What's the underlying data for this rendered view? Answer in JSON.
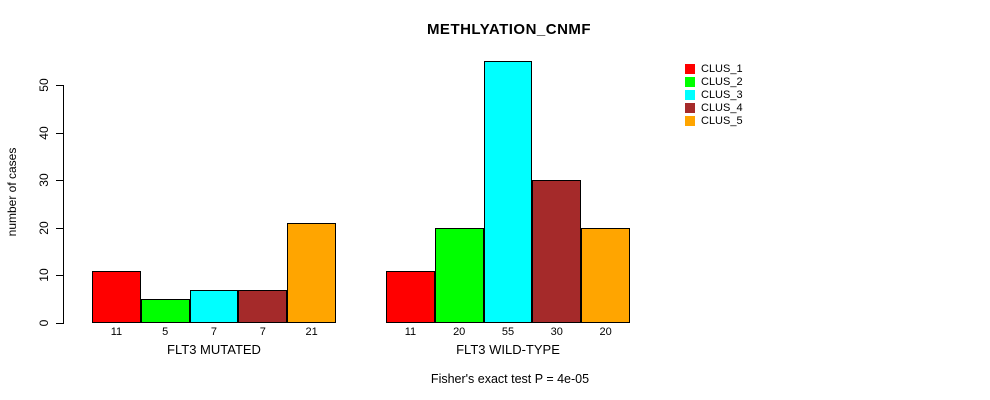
{
  "chart_data": {
    "type": "bar",
    "title": "METHLYATION_CNMF",
    "ylabel": "number of cases",
    "yticks": [
      0,
      10,
      20,
      30,
      40,
      50
    ],
    "ylim": [
      0,
      55
    ],
    "grid": false,
    "categories": [
      "FLT3 MUTATED",
      "FLT3 WILD-TYPE"
    ],
    "series": [
      {
        "name": "CLUS_1",
        "color": "#FF0000",
        "values": [
          11,
          11
        ]
      },
      {
        "name": "CLUS_2",
        "color": "#00FF00",
        "values": [
          5,
          20
        ]
      },
      {
        "name": "CLUS_3",
        "color": "#00FFFF",
        "values": [
          7,
          55
        ]
      },
      {
        "name": "CLUS_4",
        "color": "#A52A2A",
        "values": [
          7,
          30
        ]
      },
      {
        "name": "CLUS_5",
        "color": "#FFA500",
        "values": [
          21,
          20
        ]
      }
    ],
    "bar_value_labels": [
      [
        "11",
        "5",
        "7",
        "7",
        "21"
      ],
      [
        "11",
        "20",
        "55",
        "30",
        "20"
      ]
    ],
    "annotation": "Fisher's exact test P = 4e-05",
    "legend": {
      "position": "right",
      "entries": [
        "CLUS_1",
        "CLUS_2",
        "CLUS_3",
        "CLUS_4",
        "CLUS_5"
      ]
    },
    "axis_color": "#000000",
    "background_color": "#FFFFFF"
  }
}
